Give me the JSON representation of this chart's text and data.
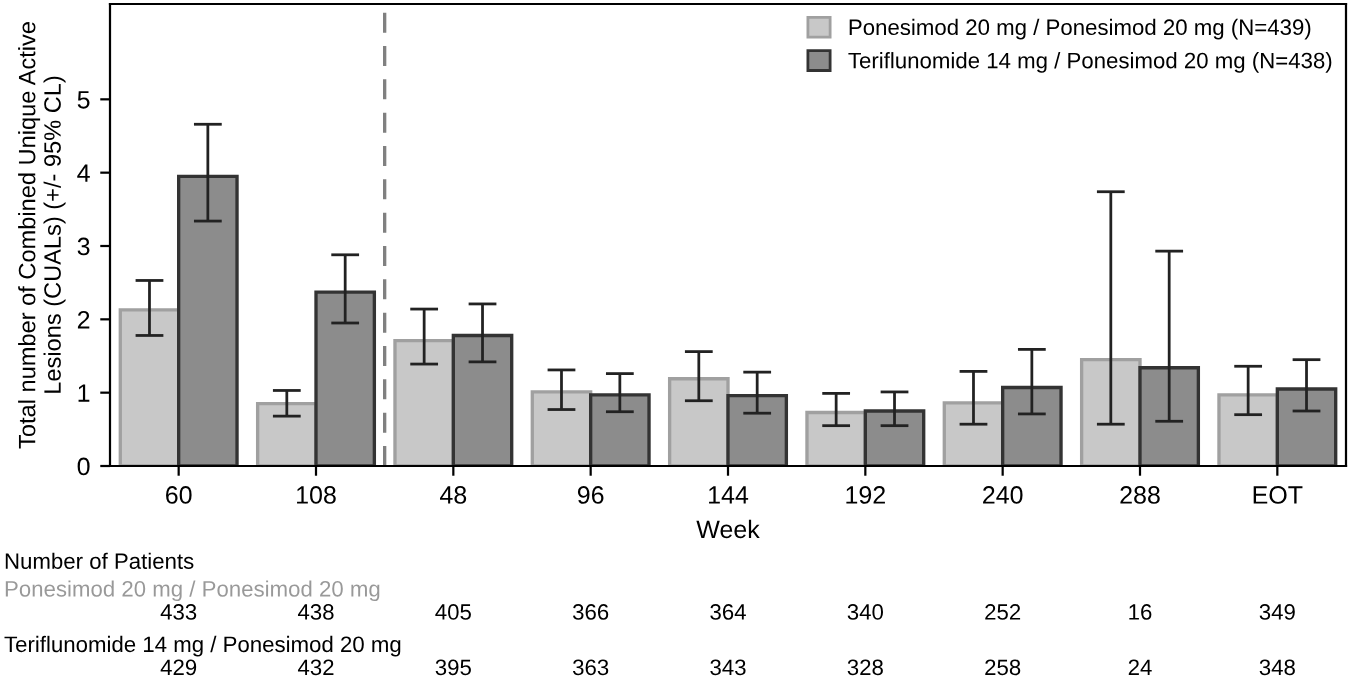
{
  "chart_data": {
    "type": "bar",
    "xlabel": "Week",
    "ylabel": "Total number of Combined Unique Active\nLesions (CUALs) (+/- 95% CL)",
    "categories": [
      "60",
      "108",
      "48",
      "96",
      "144",
      "192",
      "240",
      "288",
      "EOT"
    ],
    "series": [
      {
        "name": "Ponesimod 20 mg / Ponesimod 20 mg (N=439)",
        "color": "#c8c8c8",
        "values": [
          2.13,
          0.85,
          1.71,
          1.01,
          1.19,
          0.73,
          0.86,
          1.45,
          0.97
        ],
        "errors": [
          [
            1.78,
            2.53
          ],
          [
            0.68,
            1.03
          ],
          [
            1.39,
            2.14
          ],
          [
            0.77,
            1.31
          ],
          [
            0.89,
            1.56
          ],
          [
            0.55,
            0.99
          ],
          [
            0.57,
            1.29
          ],
          [
            0.57,
            3.74
          ],
          [
            0.7,
            1.36
          ]
        ]
      },
      {
        "name": "Teriflunomide 14 mg / Ponesimod 20 mg (N=438)",
        "color": "#8c8c8c",
        "values": [
          3.95,
          2.37,
          1.78,
          0.97,
          0.96,
          0.75,
          1.07,
          1.34,
          1.05
        ],
        "errors": [
          [
            3.34,
            4.66
          ],
          [
            1.95,
            2.88
          ],
          [
            1.42,
            2.21
          ],
          [
            0.74,
            1.26
          ],
          [
            0.72,
            1.28
          ],
          [
            0.55,
            1.01
          ],
          [
            0.71,
            1.59
          ],
          [
            0.61,
            2.93
          ],
          [
            0.75,
            1.45
          ]
        ]
      }
    ],
    "ylim": [
      0,
      6.3
    ],
    "yticks": [
      0,
      1,
      2,
      3,
      4,
      5
    ],
    "grid": false,
    "legend": "top right",
    "annotations": [
      "Number of Patients",
      "Ponesimod 20 mg / Ponesimod 20 mg",
      "433",
      "438",
      "405",
      "366",
      "364",
      "340",
      "252",
      "16",
      "349",
      "Teriflunomide 14 mg / Ponesimod 20 mg",
      "429",
      "432",
      "395",
      "363",
      "343",
      "328",
      "258",
      "24",
      "348"
    ]
  }
}
